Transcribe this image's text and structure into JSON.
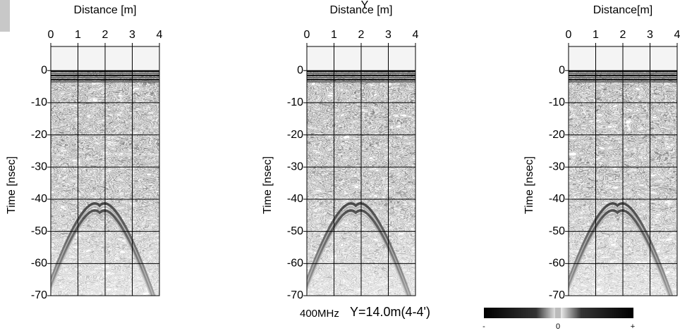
{
  "chart_data": [
    {
      "type": "radargram",
      "xlabel": "Distance [m]",
      "ylabel": "Time [nsec]",
      "xlim": [
        0,
        4
      ],
      "xticks": [
        0,
        1,
        2,
        3,
        4
      ],
      "ylim": [
        -70,
        7.5
      ],
      "yticks": [
        0,
        -10,
        -20,
        -30,
        -40,
        -50,
        -60,
        -70
      ],
      "grid": true
    },
    {
      "type": "radargram",
      "xlabel": "Distance [m]",
      "ylabel": "Time [nsec]",
      "xlim": [
        0,
        4
      ],
      "xticks": [
        0,
        1,
        2,
        3,
        4
      ],
      "ylim": [
        -70,
        7.5
      ],
      "yticks": [
        0,
        -10,
        -20,
        -30,
        -40,
        -50,
        -60,
        -70
      ],
      "grid": true
    },
    {
      "type": "radargram",
      "xlabel": "Distance[m]",
      "ylabel": "Time [nsec]",
      "xlim": [
        0,
        4
      ],
      "xticks": [
        0,
        1,
        2,
        3,
        4
      ],
      "ylim": [
        -70,
        7.5
      ],
      "yticks": [
        0,
        -10,
        -20,
        -30,
        -40,
        -50,
        -60,
        -70
      ],
      "grid": true
    }
  ],
  "annotation": "Y",
  "caption_frequency": "400MHz",
  "caption_position": "Y=14.0m(4-4')",
  "colorbar_labels": [
    "-",
    "0",
    "+"
  ]
}
